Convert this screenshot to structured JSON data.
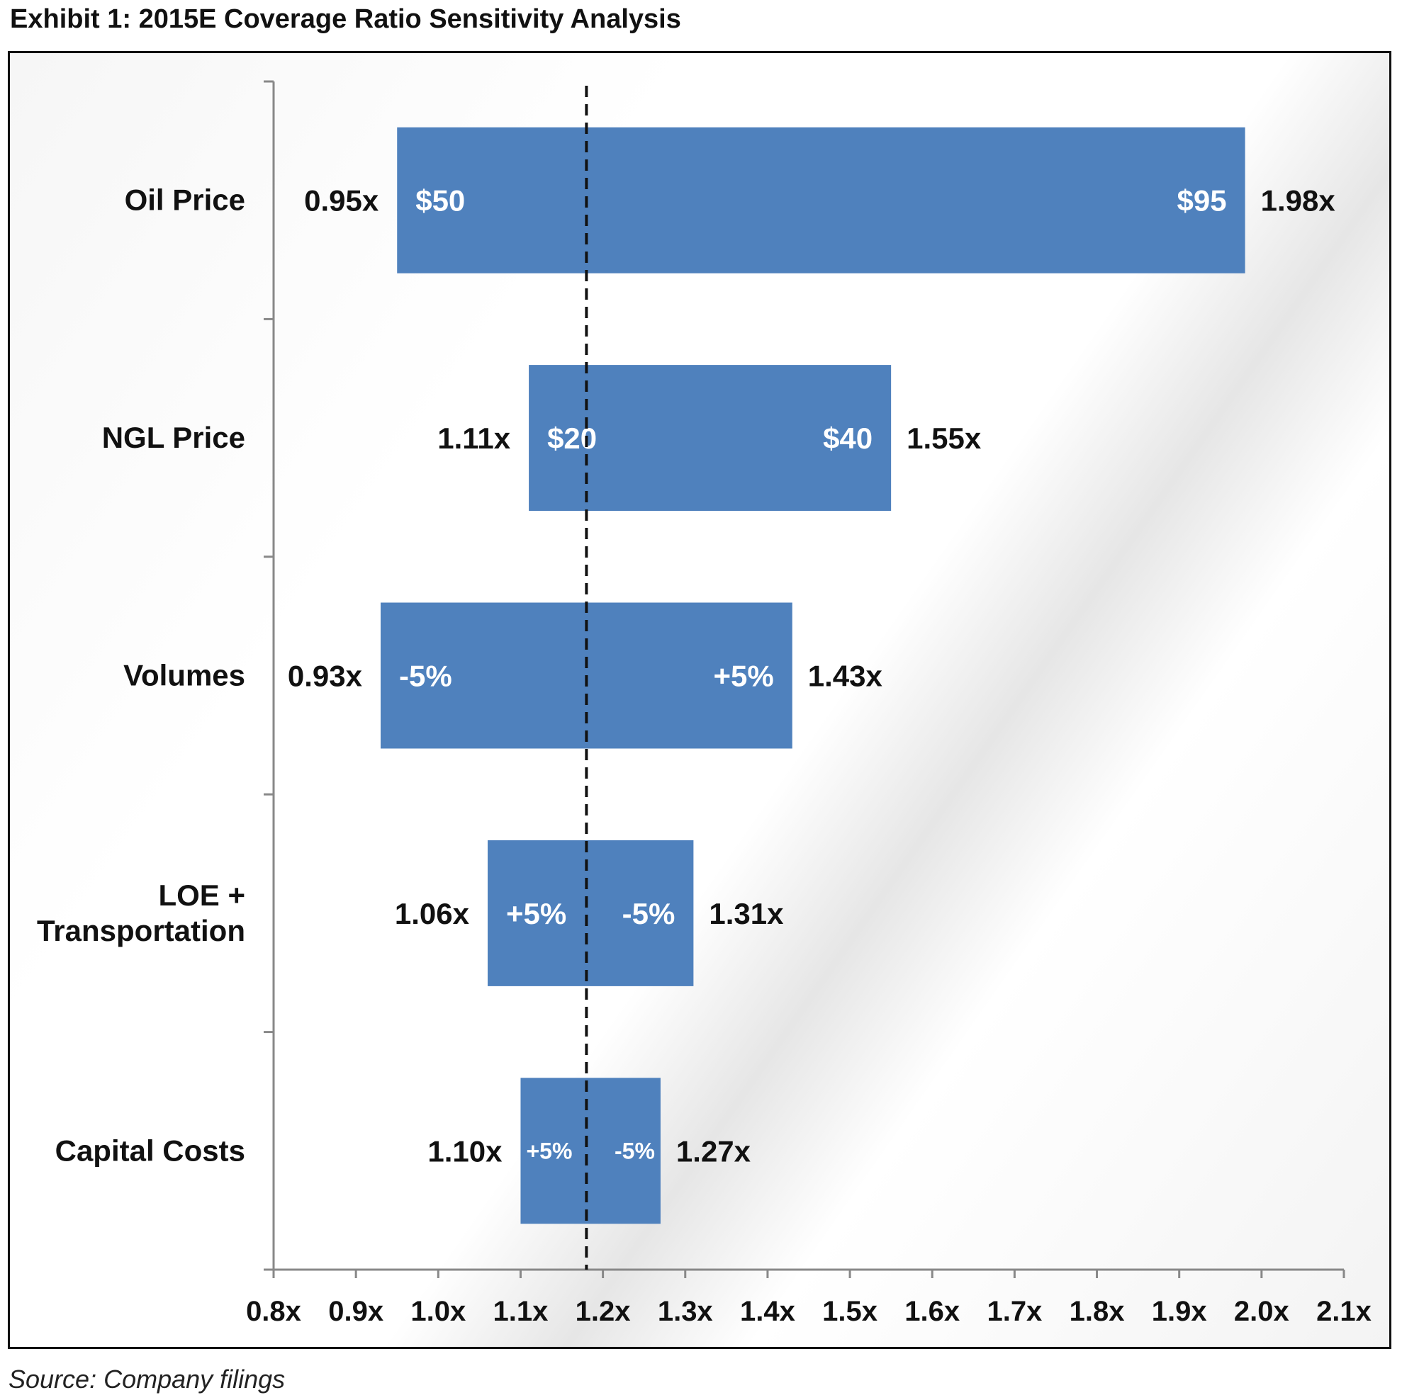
{
  "exhibit_title": "Exhibit 1: 2015E Coverage Ratio Sensitivity Analysis",
  "source_note": "Source: Company filings",
  "colors": {
    "bar": "#4f81bd",
    "axis": "#888888",
    "text": "#111111",
    "bar_text": "#ffffff",
    "baseline": "#111111"
  },
  "chart_data": {
    "type": "bar",
    "orientation": "horizontal",
    "subtype": "tornado",
    "title": "",
    "xlabel": "",
    "ylabel": "",
    "xlim": [
      0.8,
      2.1
    ],
    "x_ticks": [
      0.8,
      0.9,
      1.0,
      1.1,
      1.2,
      1.3,
      1.4,
      1.5,
      1.6,
      1.7,
      1.8,
      1.9,
      2.0,
      2.1
    ],
    "x_tick_labels": [
      "0.8x",
      "0.9x",
      "1.0x",
      "1.1x",
      "1.2x",
      "1.3x",
      "1.4x",
      "1.5x",
      "1.6x",
      "1.7x",
      "1.8x",
      "1.9x",
      "2.0x",
      "2.1x"
    ],
    "baseline": 1.18,
    "grid": false,
    "legend": "none",
    "categories": [
      "Oil Price",
      "NGL Price",
      "Volumes",
      "LOE +\nTransportation",
      "Capital Costs"
    ],
    "low_values": [
      0.95,
      1.11,
      0.93,
      1.06,
      1.1
    ],
    "high_values": [
      1.98,
      1.55,
      1.43,
      1.31,
      1.27
    ],
    "low_labels": [
      "0.95x",
      "1.11x",
      "0.93x",
      "1.06x",
      "1.10x"
    ],
    "high_labels": [
      "1.98x",
      "1.55x",
      "1.43x",
      "1.31x",
      "1.27x"
    ],
    "low_case_labels": [
      "$50",
      "$20",
      "-5%",
      "+5%",
      "+5%"
    ],
    "high_case_labels": [
      "$95",
      "$40",
      "+5%",
      "-5%",
      "-5%"
    ]
  }
}
